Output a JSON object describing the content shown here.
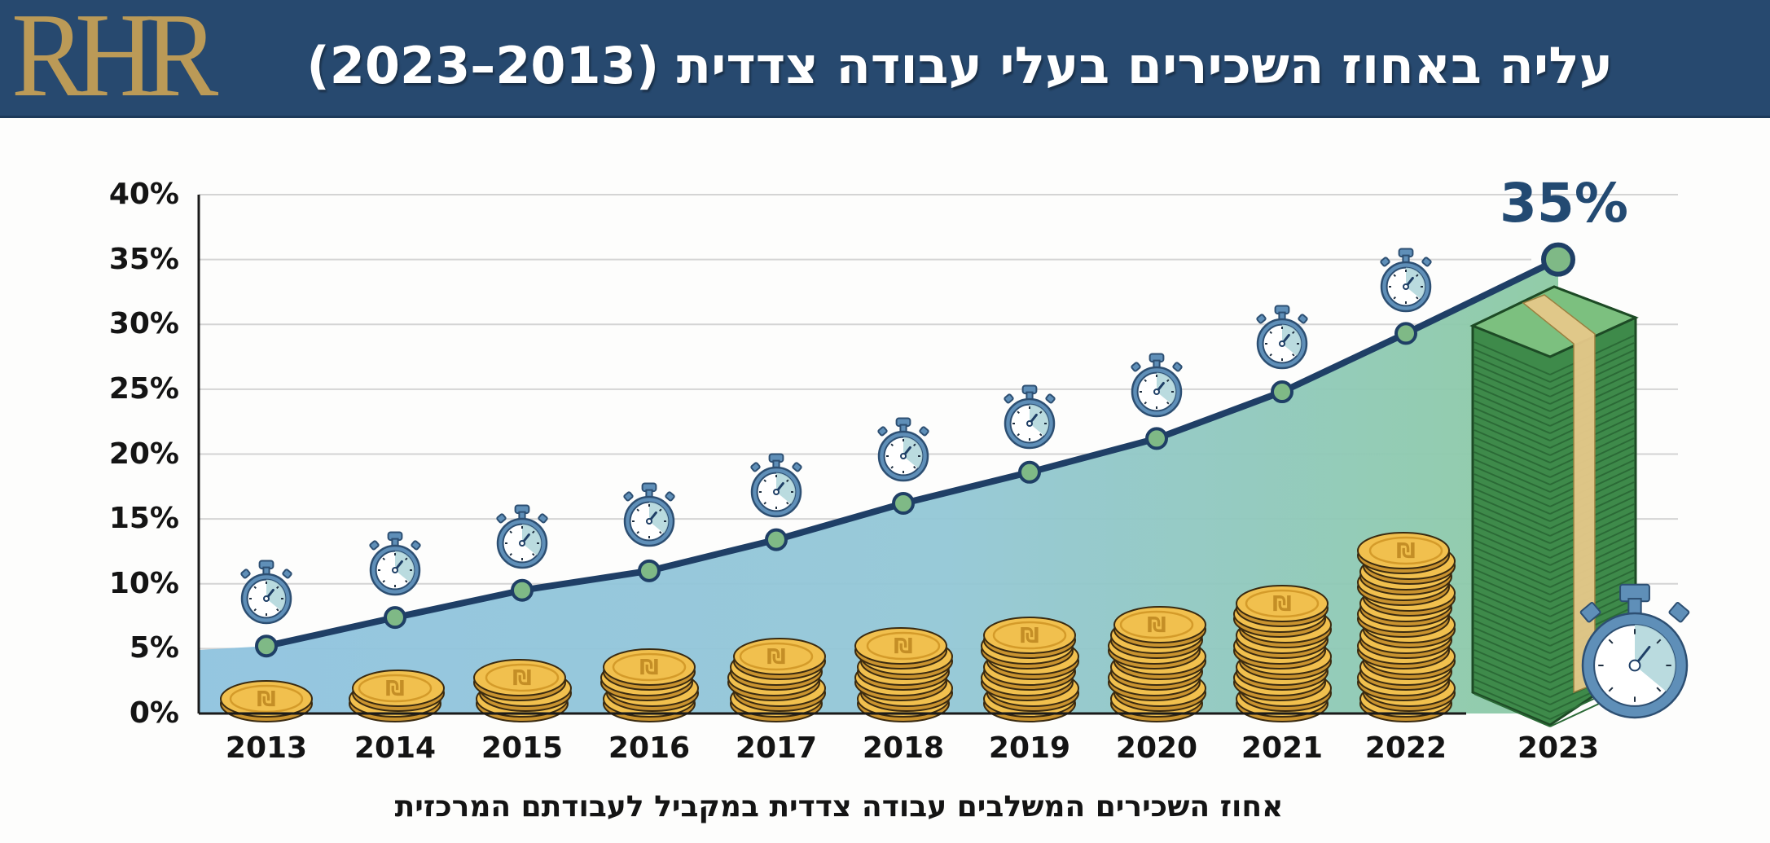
{
  "header": {
    "logo": "RHR",
    "title": "עליה באחוז השכירים בעלי עבודה צדדית (2013–2023)",
    "background_color": "#27496f",
    "logo_color": "#bb9a57"
  },
  "callout": {
    "label": "35%",
    "color": "#234a72"
  },
  "icons": {
    "data_point_marker": "stopwatch-icon",
    "bar_visual": "shekel-coin-stack-icon",
    "final_bar_visual": "banknote-stack-icon",
    "corner_decoration": "stopwatch-icon"
  },
  "colors": {
    "line": "#1f3f66",
    "marker_fill": "#7fb986",
    "area_left": "#8fc3df",
    "area_right": "#8ccaa3",
    "coin": "#f1c04e",
    "coin_edge": "#c9932f",
    "cash": "#3f8a4c",
    "stopwatch": "#5f8fb8",
    "grid": "#d4d4d4",
    "axis": "#1a1a1a"
  },
  "chart_data": {
    "type": "line",
    "title": "עליה באחוז השכירים בעלי עבודה צדדית (2013–2023)",
    "xlabel": "אחוז השכירים המשלבים עבודה צדדית במקביל לעבודתם המרכזית",
    "ylabel": "",
    "categories": [
      "2013",
      "2014",
      "2015",
      "2016",
      "2017",
      "2018",
      "2019",
      "2020",
      "2021",
      "2022",
      "2023"
    ],
    "series": [
      {
        "name": "אחוז השכירים המשלבים עבודה צדדית",
        "values": [
          5.2,
          7.4,
          9.5,
          11.0,
          13.4,
          16.2,
          18.6,
          21.2,
          24.8,
          29.3,
          35.0
        ]
      }
    ],
    "yticks": [
      "0%",
      "5%",
      "10%",
      "15%",
      "20%",
      "25%",
      "30%",
      "35%",
      "40%"
    ],
    "ylim": [
      0,
      40
    ],
    "grid": true,
    "legend": "none",
    "fill_under_line": true,
    "annotations": [
      {
        "x": "2023",
        "text": "35%"
      }
    ],
    "coin_stack_counts": [
      1,
      2,
      3,
      4,
      5,
      6,
      7,
      8,
      10,
      15,
      "cash"
    ]
  }
}
